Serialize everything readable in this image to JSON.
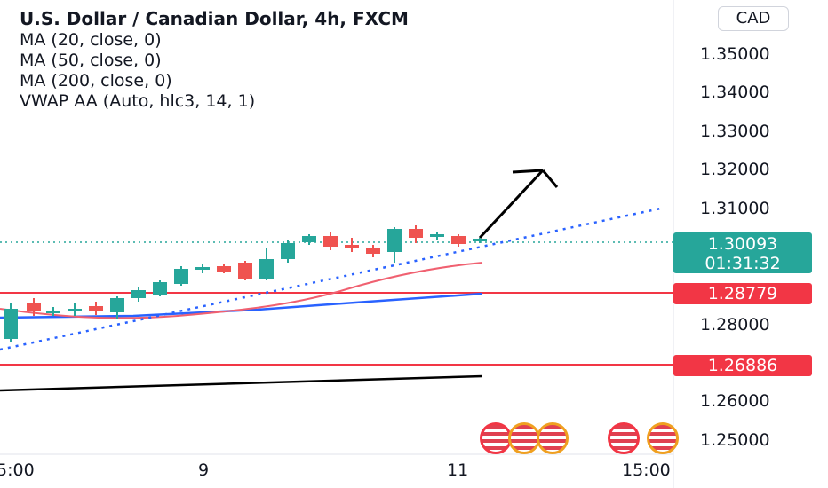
{
  "legend": {
    "title": "U.S. Dollar / Canadian Dollar, 4h, FXCM",
    "indicators": [
      "MA (20, close, 0)",
      "MA (50, close, 0)",
      "MA (200, close, 0)",
      "VWAP AA (Auto, hlc3, 14, 1)"
    ]
  },
  "currency_badge": "CAD",
  "price_axis": {
    "labels": [
      "1.35000",
      "1.34000",
      "1.33000",
      "1.32000",
      "1.31000",
      "1.28000",
      "1.26000",
      "1.25000"
    ]
  },
  "current_price": {
    "value": "1.30093",
    "countdown": "01:31:32"
  },
  "level_tags": [
    "1.28779",
    "1.26886"
  ],
  "time_axis": {
    "labels": [
      "5:00",
      "9",
      "11",
      "15:00"
    ]
  },
  "colors": {
    "up": "#26a69a",
    "down": "#ef5350",
    "level_line": "#f23645",
    "ma_red": "#f06070",
    "ma_blue": "#2962ff",
    "vwap": "#2962ff",
    "black_line": "#000000"
  },
  "icons": [
    "us-flag-icon",
    "ca-flag-icon"
  ]
}
